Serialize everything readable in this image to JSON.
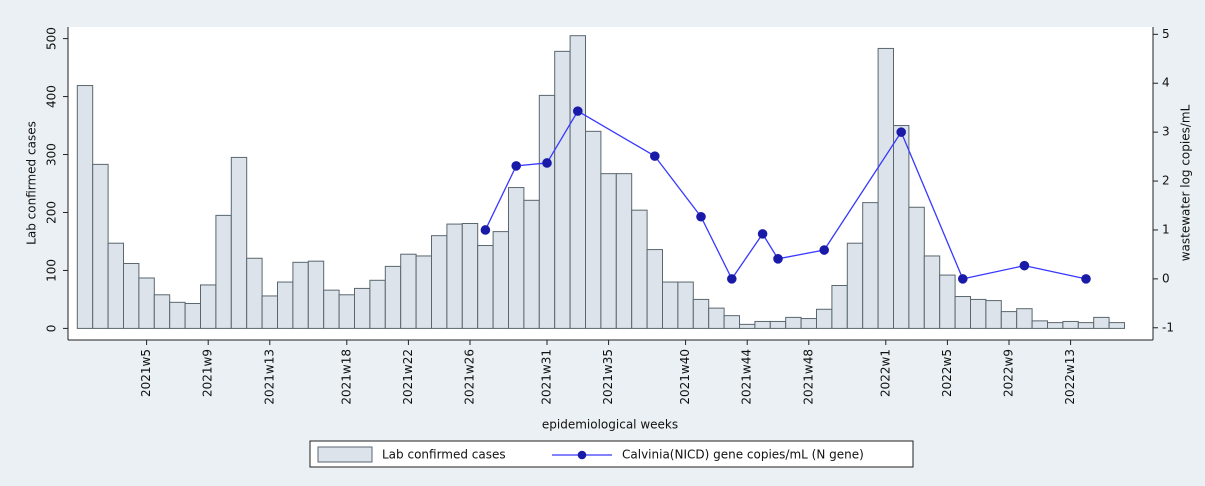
{
  "chart_data": {
    "type": "bar",
    "x_label": "epidemiological weeks",
    "y_label": "Lab confirmed cases",
    "y2_label": "wastewater log copies/mL",
    "categories": [
      null,
      null,
      null,
      null,
      "2021w5",
      null,
      null,
      null,
      "2021w9",
      null,
      null,
      null,
      "2021w13",
      null,
      null,
      null,
      null,
      "2021w18",
      null,
      null,
      null,
      "2021w22",
      null,
      null,
      null,
      "2021w26",
      null,
      null,
      null,
      null,
      "2021w31",
      null,
      null,
      null,
      "2021w35",
      null,
      null,
      null,
      null,
      "2021w40",
      null,
      null,
      null,
      "2021w44",
      null,
      null,
      null,
      "2021w48",
      null,
      null,
      null,
      null,
      "2022w1",
      null,
      null,
      null,
      "2022w5",
      null,
      null,
      null,
      "2022w9",
      null,
      null,
      null,
      "2022w13",
      null,
      null,
      null
    ],
    "series": [
      {
        "name": "Lab confirmed cases",
        "type": "bar",
        "color": "#dde3ea",
        "values": [
          419,
          283,
          147,
          112,
          87,
          58,
          45,
          43,
          75,
          195,
          295,
          121,
          56,
          80,
          114,
          116,
          66,
          58,
          69,
          83,
          107,
          128,
          125,
          160,
          180,
          181,
          143,
          167,
          243,
          221,
          402,
          478,
          505,
          340,
          267,
          267,
          204,
          136,
          80,
          80,
          50,
          35,
          22,
          7,
          12,
          12,
          19,
          17,
          33,
          74,
          147,
          217,
          483,
          350,
          209,
          125,
          92,
          55,
          50,
          48,
          29,
          34,
          13,
          10,
          12,
          10,
          19,
          10
        ]
      },
      {
        "name": "Calvinia(NICD) gene copies/mL (N gene)",
        "type": "line",
        "axis": "y2",
        "color": "#3838ff",
        "values": [
          null,
          null,
          null,
          null,
          null,
          null,
          null,
          null,
          null,
          null,
          null,
          null,
          null,
          null,
          null,
          null,
          null,
          null,
          null,
          null,
          null,
          null,
          null,
          null,
          null,
          null,
          1.0,
          null,
          2.31,
          null,
          2.37,
          null,
          3.43,
          null,
          null,
          null,
          null,
          2.51,
          null,
          null,
          1.27,
          null,
          0,
          null,
          0.92,
          0.41,
          null,
          null,
          0.59,
          null,
          null,
          null,
          null,
          3.0,
          null,
          null,
          null,
          0,
          null,
          null,
          null,
          0.27,
          null,
          null,
          null,
          0,
          null,
          null
        ]
      }
    ],
    "ylim": [
      -20,
      520
    ],
    "yticks": [
      0,
      100,
      200,
      300,
      400,
      500
    ],
    "y2lim": [
      -1.25,
      5.15
    ],
    "y2ticks": [
      -1,
      0,
      1,
      2,
      3,
      4,
      5
    ],
    "legend": "bottom"
  }
}
